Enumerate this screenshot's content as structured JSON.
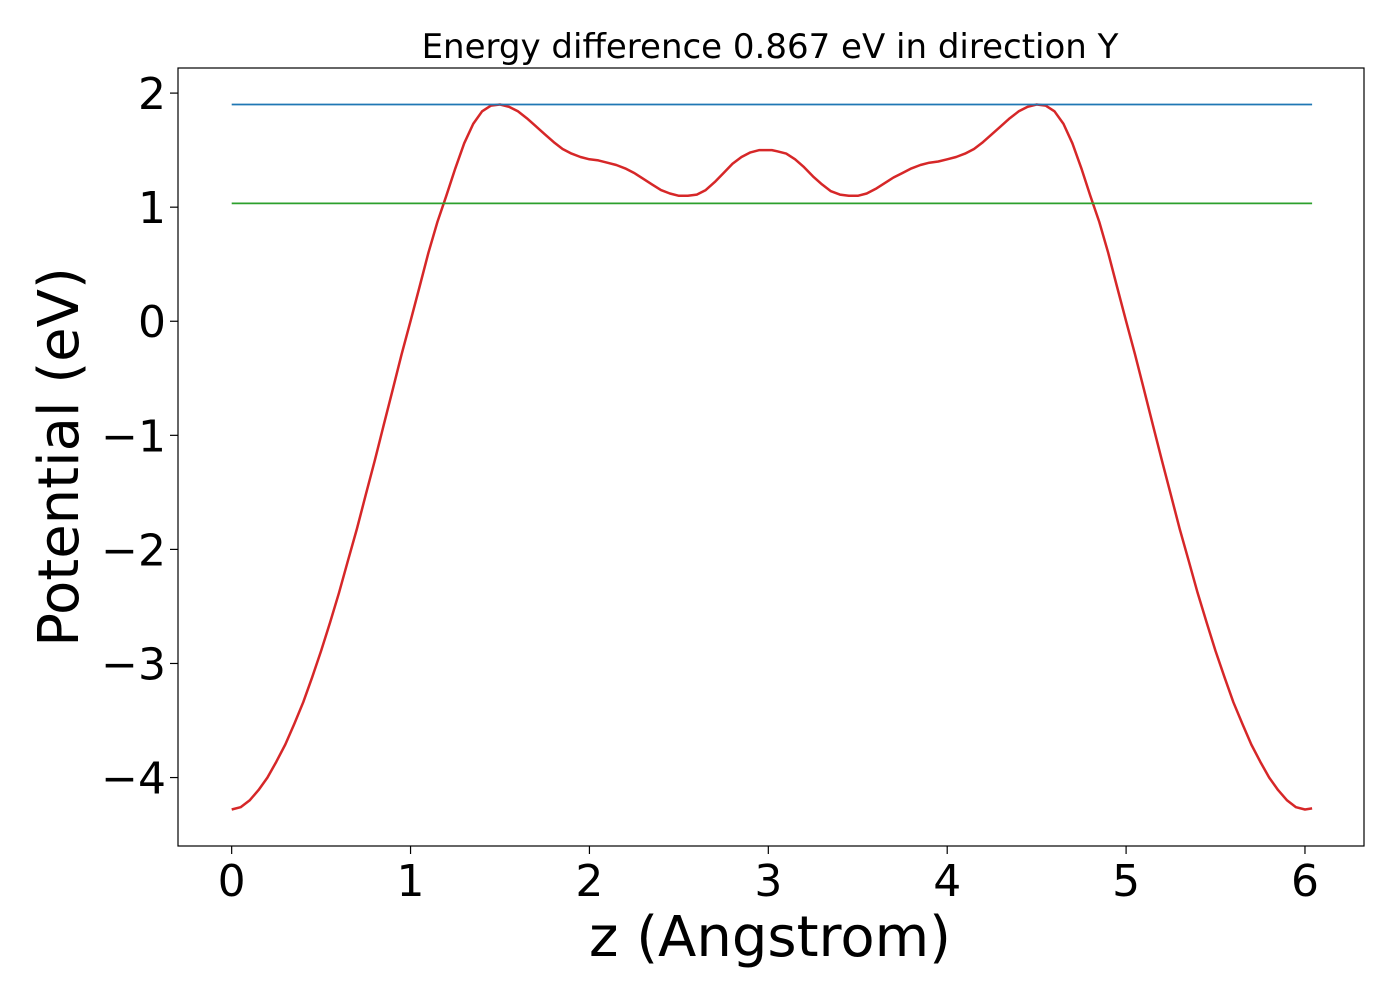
{
  "chart_data": {
    "type": "line",
    "title": "Energy difference 0.867 eV in direction Y",
    "xlabel": "z (Angstrom)",
    "ylabel": "Potential (eV)",
    "xlim": [
      -0.3,
      6.33
    ],
    "ylim": [
      -4.6,
      2.22
    ],
    "xticks": [
      0,
      1,
      2,
      3,
      4,
      5,
      6
    ],
    "xtick_labels": [
      "0",
      "1",
      "2",
      "3",
      "4",
      "5",
      "6"
    ],
    "yticks": [
      -4,
      -3,
      -2,
      -1,
      0,
      1,
      2
    ],
    "ytick_labels": [
      "−4",
      "−3",
      "−2",
      "−1",
      "0",
      "1",
      "2"
    ],
    "grid": false,
    "series": [
      {
        "color": "#d62728",
        "x": [
          0.0,
          0.05,
          0.1,
          0.15,
          0.2,
          0.25,
          0.3,
          0.35,
          0.4,
          0.45,
          0.5,
          0.55,
          0.6,
          0.65,
          0.7,
          0.75,
          0.8,
          0.85,
          0.9,
          0.95,
          1.0,
          1.05,
          1.1,
          1.15,
          1.2,
          1.25,
          1.3,
          1.35,
          1.4,
          1.45,
          1.5,
          1.55,
          1.6,
          1.65,
          1.7,
          1.75,
          1.8,
          1.85,
          1.9,
          1.95,
          2.0,
          2.05,
          2.1,
          2.15,
          2.2,
          2.25,
          2.3,
          2.35,
          2.4,
          2.45,
          2.5,
          2.55,
          2.6,
          2.65,
          2.7,
          2.75,
          2.8,
          2.85,
          2.9,
          2.95,
          3.0,
          3.02,
          3.05,
          3.1,
          3.15,
          3.2,
          3.25,
          3.3,
          3.35,
          3.4,
          3.45,
          3.5,
          3.55,
          3.6,
          3.65,
          3.7,
          3.75,
          3.8,
          3.85,
          3.9,
          3.95,
          4.0,
          4.05,
          4.1,
          4.15,
          4.2,
          4.25,
          4.3,
          4.35,
          4.4,
          4.45,
          4.5,
          4.55,
          4.6,
          4.65,
          4.7,
          4.75,
          4.8,
          4.85,
          4.9,
          4.95,
          5.0,
          5.05,
          5.1,
          5.15,
          5.2,
          5.25,
          5.3,
          5.35,
          5.4,
          5.45,
          5.5,
          5.55,
          5.6,
          5.65,
          5.7,
          5.75,
          5.8,
          5.85,
          5.9,
          5.95,
          6.0,
          6.04
        ],
        "y": [
          -4.28,
          -4.26,
          -4.2,
          -4.11,
          -4.0,
          -3.86,
          -3.71,
          -3.53,
          -3.34,
          -3.12,
          -2.89,
          -2.64,
          -2.38,
          -2.1,
          -1.82,
          -1.52,
          -1.22,
          -0.91,
          -0.6,
          -0.29,
          0.0,
          0.3,
          0.6,
          0.87,
          1.1,
          1.34,
          1.56,
          1.73,
          1.84,
          1.89,
          1.9,
          1.88,
          1.84,
          1.78,
          1.71,
          1.64,
          1.57,
          1.51,
          1.47,
          1.44,
          1.42,
          1.41,
          1.39,
          1.37,
          1.34,
          1.3,
          1.25,
          1.2,
          1.15,
          1.12,
          1.1,
          1.1,
          1.11,
          1.15,
          1.22,
          1.3,
          1.38,
          1.44,
          1.48,
          1.5,
          1.5,
          1.5,
          1.49,
          1.47,
          1.42,
          1.35,
          1.27,
          1.2,
          1.14,
          1.11,
          1.1,
          1.1,
          1.12,
          1.16,
          1.21,
          1.26,
          1.3,
          1.34,
          1.37,
          1.39,
          1.4,
          1.42,
          1.44,
          1.47,
          1.51,
          1.57,
          1.64,
          1.71,
          1.78,
          1.84,
          1.88,
          1.9,
          1.89,
          1.84,
          1.73,
          1.56,
          1.34,
          1.1,
          0.87,
          0.6,
          0.3,
          0.0,
          -0.29,
          -0.6,
          -0.91,
          -1.22,
          -1.52,
          -1.82,
          -2.1,
          -2.38,
          -2.64,
          -2.89,
          -3.12,
          -3.34,
          -3.53,
          -3.71,
          -3.86,
          -4.0,
          -4.11,
          -4.2,
          -4.26,
          -4.28,
          -4.27
        ]
      },
      {
        "color": "#1f77b4",
        "x": [
          0.0,
          6.04
        ],
        "y": [
          1.9,
          1.9
        ]
      },
      {
        "color": "#2ca02c",
        "x": [
          0.0,
          6.04
        ],
        "y": [
          1.033,
          1.033
        ]
      }
    ]
  }
}
